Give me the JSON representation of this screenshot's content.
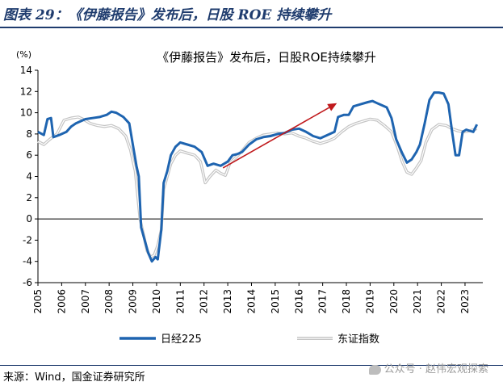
{
  "figure_label": "图表 29：《伊藤报告》发布后，日股 ROE 持续攀升",
  "source": "来源：Wind，国金证券研究所",
  "watermark": "公众号 · 赵伟宏观探索",
  "colors": {
    "nikkei": "#1e64b0",
    "topix": "#c4c4c4",
    "arrow": "#c0191c",
    "title_accent": "#1f3c6e"
  },
  "chart_data": {
    "type": "line",
    "title": "《伊藤报告》发布后，日股ROE持续攀升",
    "ylabel": "(%)",
    "ylim": [
      -6,
      14
    ],
    "yticks": [
      -6,
      -4,
      -2,
      0,
      2,
      4,
      6,
      8,
      10,
      12,
      14
    ],
    "xlim": [
      2005,
      2023.75
    ],
    "xticks": [
      "2005",
      "2006",
      "2007",
      "2008",
      "2009",
      "2010",
      "2011",
      "2012",
      "2013",
      "2014",
      "2015",
      "2016",
      "2017",
      "2018",
      "2019",
      "2020",
      "2021",
      "2022",
      "2023"
    ],
    "legend_position": "bottom",
    "annotation": {
      "type": "arrow",
      "from": [
        2012.8,
        4.8
      ],
      "to": [
        2017.6,
        10.9
      ]
    },
    "series": [
      {
        "name": "日经225",
        "color": "#1e64b0",
        "points": [
          [
            2005.0,
            8.2
          ],
          [
            2005.25,
            7.9
          ],
          [
            2005.4,
            9.4
          ],
          [
            2005.55,
            9.5
          ],
          [
            2005.65,
            7.7
          ],
          [
            2005.9,
            7.9
          ],
          [
            2006.2,
            8.2
          ],
          [
            2006.4,
            8.7
          ],
          [
            2006.6,
            9.0
          ],
          [
            2006.8,
            9.2
          ],
          [
            2007.0,
            9.4
          ],
          [
            2007.3,
            9.5
          ],
          [
            2007.6,
            9.6
          ],
          [
            2007.9,
            9.8
          ],
          [
            2008.1,
            10.1
          ],
          [
            2008.3,
            10.0
          ],
          [
            2008.6,
            9.6
          ],
          [
            2008.85,
            9.0
          ],
          [
            2009.0,
            7.0
          ],
          [
            2009.15,
            5.0
          ],
          [
            2009.25,
            4.0
          ],
          [
            2009.35,
            -0.8
          ],
          [
            2009.5,
            -2.0
          ],
          [
            2009.65,
            -3.2
          ],
          [
            2009.8,
            -4.0
          ],
          [
            2009.95,
            -3.6
          ],
          [
            2010.05,
            -3.8
          ],
          [
            2010.2,
            -1.0
          ],
          [
            2010.3,
            3.4
          ],
          [
            2010.45,
            4.5
          ],
          [
            2010.6,
            6.0
          ],
          [
            2010.8,
            6.8
          ],
          [
            2011.0,
            7.2
          ],
          [
            2011.3,
            7.0
          ],
          [
            2011.6,
            6.8
          ],
          [
            2011.9,
            6.3
          ],
          [
            2012.15,
            5.0
          ],
          [
            2012.4,
            5.2
          ],
          [
            2012.7,
            5.0
          ],
          [
            2013.0,
            5.4
          ],
          [
            2013.2,
            6.0
          ],
          [
            2013.4,
            6.1
          ],
          [
            2013.6,
            6.3
          ],
          [
            2013.9,
            7.0
          ],
          [
            2014.2,
            7.5
          ],
          [
            2014.5,
            7.7
          ],
          [
            2014.8,
            7.8
          ],
          [
            2015.1,
            8.0
          ],
          [
            2015.4,
            8.1
          ],
          [
            2015.7,
            8.4
          ],
          [
            2016.0,
            8.5
          ],
          [
            2016.3,
            8.2
          ],
          [
            2016.6,
            7.8
          ],
          [
            2016.9,
            7.6
          ],
          [
            2017.2,
            7.9
          ],
          [
            2017.5,
            8.2
          ],
          [
            2017.65,
            9.6
          ],
          [
            2017.9,
            9.8
          ],
          [
            2018.1,
            9.8
          ],
          [
            2018.3,
            10.6
          ],
          [
            2018.6,
            10.8
          ],
          [
            2018.9,
            11.0
          ],
          [
            2019.1,
            11.1
          ],
          [
            2019.3,
            10.9
          ],
          [
            2019.5,
            10.7
          ],
          [
            2019.7,
            10.5
          ],
          [
            2019.9,
            9.5
          ],
          [
            2020.1,
            7.5
          ],
          [
            2020.35,
            6.2
          ],
          [
            2020.55,
            5.3
          ],
          [
            2020.75,
            5.6
          ],
          [
            2020.95,
            6.3
          ],
          [
            2021.1,
            7.0
          ],
          [
            2021.3,
            9.0
          ],
          [
            2021.5,
            11.2
          ],
          [
            2021.7,
            11.9
          ],
          [
            2021.9,
            11.9
          ],
          [
            2022.1,
            11.8
          ],
          [
            2022.3,
            10.8
          ],
          [
            2022.45,
            8.3
          ],
          [
            2022.6,
            6.0
          ],
          [
            2022.75,
            6.0
          ],
          [
            2022.9,
            8.2
          ],
          [
            2023.05,
            8.4
          ],
          [
            2023.2,
            8.3
          ],
          [
            2023.35,
            8.2
          ],
          [
            2023.5,
            8.9
          ]
        ]
      },
      {
        "name": "东证指数",
        "color": "#c4c4c4",
        "points": [
          [
            2005.0,
            7.3
          ],
          [
            2005.25,
            7.0
          ],
          [
            2005.5,
            7.5
          ],
          [
            2005.8,
            8.0
          ],
          [
            2006.1,
            9.3
          ],
          [
            2006.4,
            9.5
          ],
          [
            2006.7,
            9.6
          ],
          [
            2006.9,
            9.4
          ],
          [
            2007.2,
            9.0
          ],
          [
            2007.5,
            8.8
          ],
          [
            2007.8,
            8.7
          ],
          [
            2008.1,
            8.8
          ],
          [
            2008.4,
            8.5
          ],
          [
            2008.7,
            7.8
          ],
          [
            2008.9,
            6.5
          ],
          [
            2009.1,
            4.5
          ],
          [
            2009.3,
            0.0
          ],
          [
            2009.45,
            -1.5
          ],
          [
            2009.6,
            -3.0
          ],
          [
            2009.75,
            -3.6
          ],
          [
            2009.9,
            -3.4
          ],
          [
            2010.05,
            -2.5
          ],
          [
            2010.2,
            -1.0
          ],
          [
            2010.3,
            2.8
          ],
          [
            2010.45,
            4.0
          ],
          [
            2010.6,
            5.2
          ],
          [
            2010.8,
            6.0
          ],
          [
            2011.0,
            6.4
          ],
          [
            2011.3,
            6.2
          ],
          [
            2011.6,
            6.0
          ],
          [
            2011.85,
            5.4
          ],
          [
            2012.05,
            3.4
          ],
          [
            2012.25,
            4.0
          ],
          [
            2012.5,
            4.6
          ],
          [
            2012.7,
            4.3
          ],
          [
            2012.9,
            4.1
          ],
          [
            2013.1,
            5.3
          ],
          [
            2013.35,
            5.8
          ],
          [
            2013.6,
            6.4
          ],
          [
            2013.9,
            7.2
          ],
          [
            2014.2,
            7.6
          ],
          [
            2014.5,
            7.9
          ],
          [
            2014.8,
            8.0
          ],
          [
            2015.1,
            8.1
          ],
          [
            2015.4,
            8.0
          ],
          [
            2015.7,
            8.1
          ],
          [
            2016.0,
            7.8
          ],
          [
            2016.3,
            7.6
          ],
          [
            2016.6,
            7.3
          ],
          [
            2016.9,
            7.1
          ],
          [
            2017.2,
            7.3
          ],
          [
            2017.5,
            7.6
          ],
          [
            2017.8,
            8.2
          ],
          [
            2018.1,
            8.7
          ],
          [
            2018.4,
            9.0
          ],
          [
            2018.7,
            9.2
          ],
          [
            2019.0,
            9.4
          ],
          [
            2019.3,
            9.3
          ],
          [
            2019.6,
            8.8
          ],
          [
            2019.9,
            8.2
          ],
          [
            2020.15,
            6.8
          ],
          [
            2020.35,
            5.4
          ],
          [
            2020.55,
            4.4
          ],
          [
            2020.75,
            4.2
          ],
          [
            2020.95,
            4.8
          ],
          [
            2021.15,
            5.5
          ],
          [
            2021.35,
            7.2
          ],
          [
            2021.6,
            8.4
          ],
          [
            2021.9,
            8.9
          ],
          [
            2022.2,
            8.8
          ],
          [
            2022.45,
            8.5
          ],
          [
            2022.7,
            8.3
          ],
          [
            2022.95,
            8.2
          ],
          [
            2023.2,
            8.3
          ],
          [
            2023.5,
            8.5
          ]
        ]
      }
    ]
  }
}
